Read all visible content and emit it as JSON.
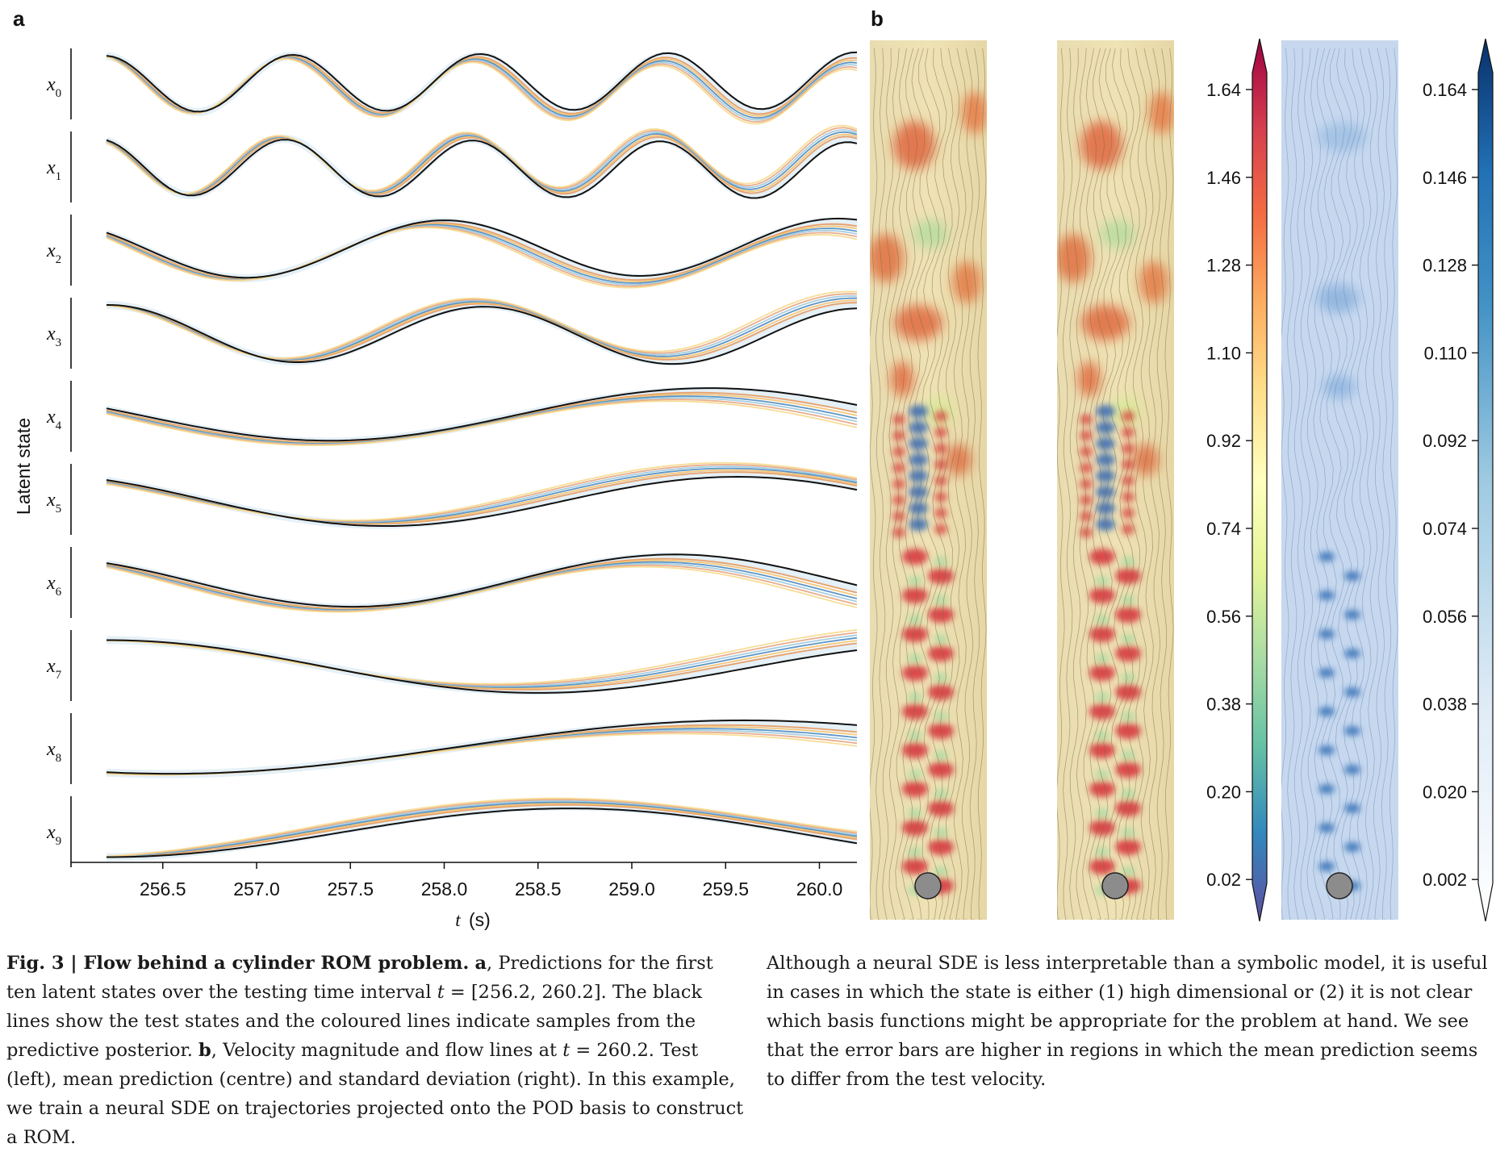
{
  "figure": {
    "panel_a_label": "a",
    "panel_b_label": "b",
    "y_axis_title": "Latent state",
    "x_axis_prefix": "t",
    "x_axis_unit": "(s)",
    "x_ticks": [
      "256.5",
      "257.0",
      "257.5",
      "258.0",
      "258.5",
      "259.0",
      "259.5",
      "260.0"
    ],
    "row_labels": [
      {
        "base": "x",
        "sub": "0"
      },
      {
        "base": "x",
        "sub": "1"
      },
      {
        "base": "x",
        "sub": "2"
      },
      {
        "base": "x",
        "sub": "3"
      },
      {
        "base": "x",
        "sub": "4"
      },
      {
        "base": "x",
        "sub": "5"
      },
      {
        "base": "x",
        "sub": "6"
      },
      {
        "base": "x",
        "sub": "7"
      },
      {
        "base": "x",
        "sub": "8"
      },
      {
        "base": "x",
        "sub": "9"
      }
    ],
    "colorbar_velocity_ticks": [
      "1.64",
      "1.46",
      "1.28",
      "1.10",
      "0.92",
      "0.74",
      "0.56",
      "0.38",
      "0.20",
      "0.02"
    ],
    "colorbar_std_ticks": [
      "0.164",
      "0.146",
      "0.128",
      "0.110",
      "0.092",
      "0.074",
      "0.056",
      "0.038",
      "0.020",
      "0.002"
    ],
    "colors": {
      "test_line": "#111111",
      "sample_lines": [
        "#e8975a",
        "#f4c06a",
        "#4a8ac0",
        "#9cc9de",
        "#e7a47f",
        "#f6d98b"
      ],
      "cylinder": "#8c8c8c",
      "velocity_cmap": [
        "#5e4fa2",
        "#3288bd",
        "#66c2a5",
        "#abdda4",
        "#e6f598",
        "#ffffbf",
        "#fee08b",
        "#fdae61",
        "#f46d43",
        "#d53e4f",
        "#9e0142"
      ],
      "std_cmap": [
        "#ffffff",
        "#deebf7",
        "#9ecae1",
        "#4292c6",
        "#2171b5",
        "#08306b"
      ]
    }
  },
  "chart_data": [
    {
      "type": "line",
      "x_range": [
        256.2,
        260.2
      ],
      "xlabel": "t (s)",
      "ylabel": "Latent state",
      "series": [
        {
          "name": "x0",
          "period": 1.0,
          "phase": 0.1,
          "amplitude": 1.0,
          "offset": 0
        },
        {
          "name": "x1",
          "period": 1.0,
          "phase": 0.35,
          "amplitude": 1.0,
          "offset": 0
        },
        {
          "name": "x2",
          "period": 2.1,
          "phase": 0.95,
          "amplitude": 1.0,
          "offset": 0
        },
        {
          "name": "x3",
          "period": 2.0,
          "phase": 0.0,
          "amplitude": 1.0,
          "offset": 0
        },
        {
          "name": "x4",
          "period": 4.0,
          "phase": 1.3,
          "amplitude": 0.9,
          "offset": 0
        },
        {
          "name": "x5",
          "period": 3.8,
          "phase": 0.75,
          "amplitude": 0.9,
          "offset": 0
        },
        {
          "name": "x6",
          "period": 3.4,
          "phase": 0.75,
          "amplitude": 0.9,
          "offset": 0
        },
        {
          "name": "x7",
          "period": 4.5,
          "phase": 0.0,
          "amplitude": 0.9,
          "offset": 0
        },
        {
          "name": "x8",
          "period": 6.0,
          "phase": 2.8,
          "amplitude": 0.9,
          "offset": 0
        },
        {
          "name": "x9",
          "period": 5.0,
          "phase": 3.2,
          "amplitude": 0.9,
          "offset": 0
        }
      ]
    }
  ],
  "caption_left": {
    "fig_label": "Fig. 3 | Flow behind a cylinder ROM problem.",
    "a_label": "a",
    "a_text_1": ", Predictions for the first ten latent states over the testing time interval ",
    "t_symbol": "t",
    "a_text_2": " = [256.2, 260.2]. The black lines show the test states and the coloured lines indicate samples from the predictive posterior. ",
    "b_label": "b",
    "b_text_1": ", Velocity magnitude and flow lines at ",
    "b_text_2": " = 260.2. Test (left), mean prediction (centre) and standard deviation (right). In this example, we train a neural SDE on trajectories projected onto the POD basis to construct a ROM."
  },
  "caption_right": {
    "text": "Although a neural SDE is less interpretable than a symbolic model, it is useful in cases in which the state is either (1) high dimensional or (2) it is not clear which basis functions might be appropriate for the problem at hand. We see that the error bars are higher in regions in which the mean prediction seems to differ from the test velocity."
  }
}
